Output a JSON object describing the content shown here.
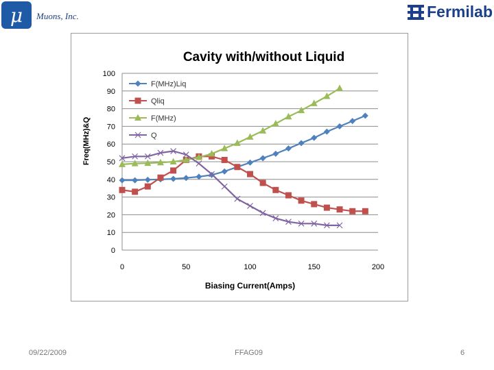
{
  "header": {
    "logo_symbol": "μ",
    "company_name": "Muons, Inc.",
    "partner_logo_text": "Fermilab"
  },
  "footer": {
    "date": "09/22/2009",
    "conference": "FFAG09",
    "page_number": "6"
  },
  "colors": {
    "F_liq": "#4f81bd",
    "Q_liq": "#c0504d",
    "F": "#9bbb59",
    "Q": "#8064a2",
    "brand": "#1f5aa6"
  },
  "chart_data": {
    "type": "line",
    "title": "Cavity with/without Liquid",
    "xlabel": "Biasing Current(Amps)",
    "ylabel": "Freq(MHz)&Q",
    "xlim": [
      0,
      200
    ],
    "ylim": [
      0,
      100
    ],
    "xticks": [
      0,
      50,
      100,
      150,
      200
    ],
    "yticks": [
      0,
      10,
      20,
      30,
      40,
      50,
      60,
      70,
      80,
      90,
      100
    ],
    "grid": true,
    "legend_position": "top-left",
    "series": [
      {
        "name": "F(MHz)Liq",
        "marker": "diamond",
        "x": [
          0,
          10,
          20,
          30,
          40,
          50,
          60,
          70,
          80,
          90,
          100,
          110,
          120,
          130,
          140,
          150,
          160,
          170,
          180,
          190
        ],
        "values": [
          39.5,
          39.5,
          39.8,
          40,
          40.3,
          40.8,
          41.5,
          42.5,
          44.5,
          47,
          49.5,
          52,
          54.5,
          57.5,
          60.5,
          63.5,
          67,
          70,
          73,
          76
        ]
      },
      {
        "name": "Qliq",
        "marker": "square",
        "x": [
          0,
          10,
          20,
          30,
          40,
          50,
          60,
          70,
          80,
          90,
          100,
          110,
          120,
          130,
          140,
          150,
          160,
          170,
          180,
          190
        ],
        "values": [
          34,
          33,
          36,
          41,
          45,
          51,
          53,
          53,
          51,
          47,
          43,
          38,
          34,
          31,
          28,
          26,
          24,
          23,
          22,
          22
        ]
      },
      {
        "name": "F(MHz)",
        "marker": "triangle",
        "x": [
          0,
          10,
          20,
          30,
          40,
          50,
          60,
          70,
          80,
          90,
          100,
          110,
          120,
          130,
          140,
          150,
          160,
          170
        ],
        "values": [
          48.5,
          49,
          49.2,
          49.5,
          50,
          51,
          52.5,
          54.5,
          57.5,
          60.5,
          64,
          67.5,
          71.5,
          75.5,
          79,
          83,
          87,
          91.5
        ]
      },
      {
        "name": "Q",
        "marker": "x",
        "x": [
          0,
          10,
          20,
          30,
          40,
          50,
          60,
          70,
          80,
          90,
          100,
          110,
          120,
          130,
          140,
          150,
          160,
          170
        ],
        "values": [
          52,
          53,
          53,
          55,
          56,
          54,
          49,
          43,
          36,
          29,
          25,
          21,
          18,
          16,
          15,
          15,
          14,
          14
        ]
      }
    ]
  }
}
